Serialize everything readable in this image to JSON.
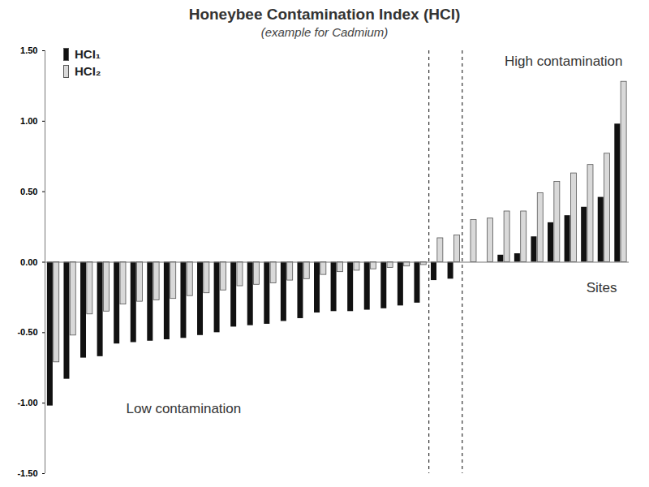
{
  "chart_data": {
    "type": "bar",
    "title": "Honeybee Contamination Index (HCI)",
    "subtitle": "(example for Cadmium)",
    "annotations": [
      "High contamination",
      "Low contamination",
      "Sites"
    ],
    "categories": [
      null,
      null,
      null,
      null,
      null,
      null,
      null,
      null,
      null,
      null,
      null,
      null,
      null,
      null,
      null,
      null,
      null,
      null,
      null,
      null,
      null,
      null,
      null,
      null,
      null,
      null,
      null,
      null,
      null,
      null,
      null,
      null,
      null,
      null,
      null
    ],
    "series": [
      {
        "name": "HCI₁",
        "color": "#111111",
        "values": [
          -1.02,
          -0.83,
          -0.68,
          -0.67,
          -0.58,
          -0.57,
          -0.56,
          -0.55,
          -0.54,
          -0.52,
          -0.5,
          -0.46,
          -0.45,
          -0.44,
          -0.42,
          -0.4,
          -0.36,
          -0.35,
          -0.35,
          -0.34,
          -0.33,
          -0.31,
          -0.29,
          -0.13,
          -0.12,
          0.0,
          0.0,
          0.05,
          0.06,
          0.18,
          0.28,
          0.33,
          0.39,
          0.46,
          0.98
        ]
      },
      {
        "name": "HCI₂",
        "color": "#d9d9d9",
        "values": [
          -0.71,
          -0.52,
          -0.37,
          -0.35,
          -0.3,
          -0.28,
          -0.27,
          -0.26,
          -0.24,
          -0.22,
          -0.2,
          -0.17,
          -0.16,
          -0.15,
          -0.13,
          -0.12,
          -0.09,
          -0.07,
          -0.06,
          -0.05,
          -0.04,
          -0.03,
          -0.02,
          0.17,
          0.19,
          0.3,
          0.31,
          0.36,
          0.36,
          0.49,
          0.57,
          0.63,
          0.69,
          0.77,
          1.28
        ]
      }
    ],
    "ylim": [
      -1.5,
      1.5
    ],
    "yticks": [
      {
        "value": -1.5,
        "label": "-1.50"
      },
      {
        "value": -1.0,
        "label": "-1.00"
      },
      {
        "value": -0.5,
        "label": "-0.50"
      },
      {
        "value": 0,
        "label": "0.00"
      },
      {
        "value": 0.5,
        "label": "0.50"
      },
      {
        "value": 1.0,
        "label": "1.00"
      },
      {
        "value": 1.5,
        "label": "1.50"
      }
    ],
    "tick_labels": "y",
    "legend": "top-left",
    "grid": false
  }
}
